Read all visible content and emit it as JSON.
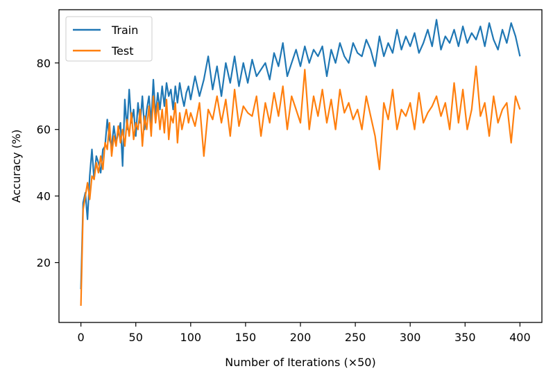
{
  "chart_data": {
    "type": "line",
    "title": "",
    "xlabel": "Number of Iterations (×50)",
    "ylabel": "Accuracy (%)",
    "xlim": [
      -20,
      420
    ],
    "ylim": [
      2,
      96
    ],
    "xticks": [
      0,
      50,
      100,
      150,
      200,
      250,
      300,
      350,
      400
    ],
    "yticks": [
      20,
      40,
      60,
      80
    ],
    "grid": false,
    "legend_position": "top-left",
    "series": [
      {
        "name": "Train",
        "color": "#1f77b4",
        "x": [
          0,
          2,
          4,
          6,
          8,
          10,
          12,
          14,
          16,
          18,
          20,
          22,
          24,
          26,
          28,
          30,
          32,
          34,
          36,
          38,
          40,
          42,
          44,
          46,
          48,
          50,
          52,
          54,
          56,
          58,
          60,
          62,
          64,
          66,
          68,
          70,
          72,
          74,
          76,
          78,
          80,
          82,
          84,
          86,
          88,
          90,
          92,
          94,
          96,
          98,
          100,
          104,
          108,
          112,
          116,
          120,
          124,
          128,
          132,
          136,
          140,
          144,
          148,
          152,
          156,
          160,
          164,
          168,
          172,
          176,
          180,
          184,
          188,
          192,
          196,
          200,
          204,
          208,
          212,
          216,
          220,
          224,
          228,
          232,
          236,
          240,
          244,
          248,
          252,
          256,
          260,
          264,
          268,
          272,
          276,
          280,
          284,
          288,
          292,
          296,
          300,
          304,
          308,
          312,
          316,
          320,
          324,
          328,
          332,
          336,
          340,
          344,
          348,
          352,
          356,
          360,
          364,
          368,
          372,
          376,
          380,
          384,
          388,
          392,
          396,
          400
        ],
        "values": [
          12,
          38,
          41,
          33,
          46,
          54,
          45,
          52,
          50,
          47,
          54,
          55,
          63,
          57,
          55,
          61,
          56,
          59,
          62,
          49,
          69,
          60,
          72,
          62,
          66,
          58,
          68,
          62,
          70,
          60,
          66,
          70,
          62,
          75,
          64,
          71,
          66,
          73,
          67,
          74,
          70,
          72,
          66,
          73,
          68,
          74,
          70,
          67,
          71,
          73,
          69,
          76,
          70,
          75,
          82,
          72,
          79,
          70,
          80,
          74,
          82,
          73,
          80,
          74,
          81,
          76,
          78,
          80,
          75,
          83,
          79,
          86,
          76,
          80,
          84,
          79,
          85,
          80,
          84,
          82,
          85,
          76,
          84,
          80,
          86,
          82,
          80,
          86,
          83,
          82,
          87,
          84,
          79,
          88,
          82,
          86,
          83,
          90,
          84,
          88,
          85,
          89,
          83,
          86,
          90,
          85,
          93,
          84,
          88,
          86,
          90,
          85,
          91,
          86,
          89,
          87,
          91,
          85,
          92,
          87,
          84,
          90,
          86,
          92,
          88,
          82
        ]
      },
      {
        "name": "Test",
        "color": "#ff7f0e",
        "x": [
          0,
          2,
          4,
          6,
          8,
          10,
          12,
          14,
          16,
          18,
          20,
          22,
          24,
          26,
          28,
          30,
          32,
          34,
          36,
          38,
          40,
          42,
          44,
          46,
          48,
          50,
          52,
          54,
          56,
          58,
          60,
          62,
          64,
          66,
          68,
          70,
          72,
          74,
          76,
          78,
          80,
          82,
          84,
          86,
          88,
          90,
          92,
          94,
          96,
          98,
          100,
          104,
          108,
          112,
          116,
          120,
          124,
          128,
          132,
          136,
          140,
          144,
          148,
          152,
          156,
          160,
          164,
          168,
          172,
          176,
          180,
          184,
          188,
          192,
          196,
          200,
          204,
          208,
          212,
          216,
          220,
          224,
          228,
          232,
          236,
          240,
          244,
          248,
          252,
          256,
          260,
          264,
          268,
          272,
          276,
          280,
          284,
          288,
          292,
          296,
          300,
          304,
          308,
          312,
          316,
          320,
          324,
          328,
          332,
          336,
          340,
          344,
          348,
          352,
          356,
          360,
          364,
          368,
          372,
          376,
          380,
          384,
          388,
          392,
          396,
          400
        ],
        "values": [
          7,
          36,
          40,
          44,
          39,
          46,
          45,
          50,
          47,
          52,
          48,
          56,
          54,
          62,
          52,
          58,
          55,
          61,
          56,
          60,
          55,
          63,
          58,
          65,
          57,
          62,
          60,
          66,
          55,
          64,
          60,
          67,
          58,
          70,
          62,
          68,
          60,
          66,
          59,
          69,
          57,
          64,
          62,
          68,
          56,
          65,
          60,
          63,
          66,
          62,
          65,
          61,
          68,
          52,
          66,
          63,
          70,
          62,
          69,
          58,
          72,
          61,
          67,
          65,
          64,
          70,
          58,
          68,
          62,
          71,
          64,
          73,
          60,
          70,
          66,
          62,
          78,
          60,
          70,
          64,
          72,
          62,
          69,
          60,
          72,
          65,
          68,
          63,
          66,
          60,
          70,
          64,
          58,
          48,
          68,
          63,
          72,
          60,
          66,
          64,
          68,
          60,
          71,
          62,
          65,
          67,
          70,
          64,
          68,
          60,
          74,
          62,
          72,
          60,
          66,
          79,
          64,
          68,
          58,
          70,
          62,
          66,
          68,
          56,
          70,
          66
        ]
      }
    ]
  }
}
